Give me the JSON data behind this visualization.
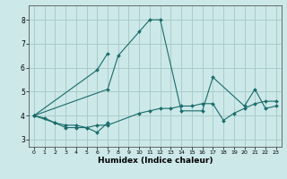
{
  "xlabel": "Humidex (Indice chaleur)",
  "bg_color": "#cce8e8",
  "grid_color": "#aacccc",
  "line_color": "#1a6b6b",
  "x_ticks": [
    0,
    1,
    2,
    3,
    4,
    5,
    6,
    7,
    8,
    9,
    10,
    11,
    12,
    13,
    14,
    15,
    16,
    17,
    18,
    19,
    20,
    21,
    22,
    23
  ],
  "y_ticks": [
    3,
    4,
    5,
    6,
    7,
    8
  ],
  "ylim": [
    2.7,
    8.6
  ],
  "xlim": [
    -0.5,
    23.5
  ],
  "series": [
    {
      "x": [
        0,
        1,
        2,
        3,
        4,
        5,
        6,
        7
      ],
      "y": [
        4.0,
        3.9,
        3.7,
        3.5,
        3.5,
        3.5,
        3.3,
        3.7
      ]
    },
    {
      "x": [
        0,
        2,
        3,
        4,
        5,
        6,
        7,
        10,
        11,
        12,
        13,
        14,
        15,
        16,
        17,
        18,
        19,
        20,
        21,
        22,
        23
      ],
      "y": [
        4.0,
        3.7,
        3.6,
        3.6,
        3.5,
        3.6,
        3.6,
        4.1,
        4.2,
        4.3,
        4.3,
        4.4,
        4.4,
        4.5,
        4.5,
        3.8,
        4.1,
        4.3,
        4.5,
        4.6,
        4.6
      ]
    },
    {
      "x": [
        0,
        7,
        8,
        10,
        11,
        12,
        14,
        16,
        17,
        20,
        21,
        22,
        23
      ],
      "y": [
        4.0,
        5.1,
        6.5,
        7.5,
        8.0,
        8.0,
        4.2,
        4.2,
        5.6,
        4.4,
        5.1,
        4.3,
        4.4
      ]
    },
    {
      "x": [
        0,
        6,
        7
      ],
      "y": [
        4.0,
        5.9,
        6.6
      ]
    }
  ]
}
